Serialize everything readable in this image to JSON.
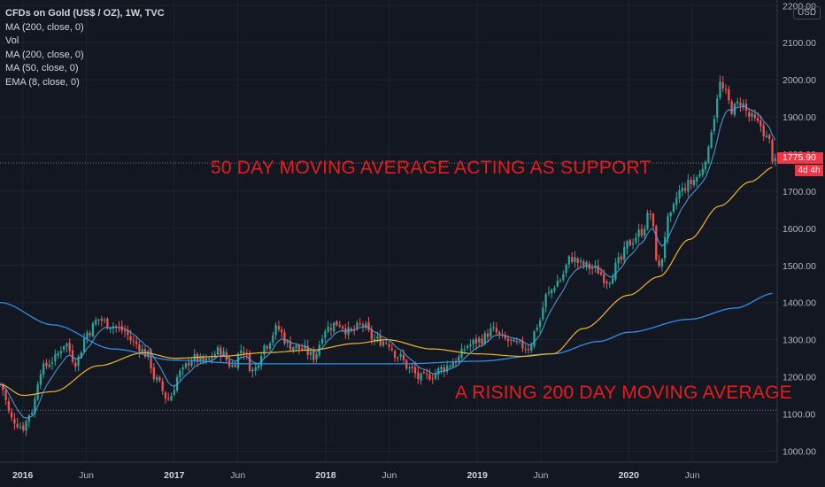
{
  "chart_data": {
    "type": "candlestick",
    "symbol_line": "CFDs on Gold (US$ / OZ), 1W, TVC",
    "indicators": [
      "MA (200, close, 0)",
      "Vol",
      "MA (200, close, 0)",
      "MA (50, close, 0)",
      "EMA (8, close, 0)"
    ],
    "currency": "USD",
    "last_price": "1775.90",
    "countdown": "4d 4h",
    "annotations": [
      "50 DAY MOVING AVERAGE ACTING AS SUPPORT",
      "A RISING 200 DAY MOVING AVERAGE"
    ],
    "y_ticks": [
      1000,
      1100,
      1200,
      1300,
      1400,
      1500,
      1600,
      1700,
      1800,
      1900,
      2000,
      2100,
      2200
    ],
    "y_tick_labels": [
      "1000.00",
      "1100.00",
      "1200.00",
      "1300.00",
      "1400.00",
      "1500.00",
      "1600.00",
      "1700.00",
      "1800.00",
      "1900.00",
      "2000.00",
      "2100.00",
      "2200.00"
    ],
    "ylim": [
      970,
      2215
    ],
    "x_range": [
      2015.85,
      2020.98
    ],
    "x_ticks": [
      {
        "label": "2016",
        "t": 2016.0,
        "year": true
      },
      {
        "label": "Jun",
        "t": 2016.42,
        "year": false
      },
      {
        "label": "2017",
        "t": 2017.0,
        "year": true
      },
      {
        "label": "Jun",
        "t": 2017.42,
        "year": false
      },
      {
        "label": "2018",
        "t": 2018.0,
        "year": true
      },
      {
        "label": "Jun",
        "t": 2018.42,
        "year": false
      },
      {
        "label": "2019",
        "t": 2019.0,
        "year": true
      },
      {
        "label": "Jun",
        "t": 2019.42,
        "year": false
      },
      {
        "label": "2020",
        "t": 2020.0,
        "year": true
      },
      {
        "label": "Jun",
        "t": 2020.42,
        "year": false
      }
    ],
    "close_anchors": [
      [
        2015.85,
        1180
      ],
      [
        2015.93,
        1085
      ],
      [
        2016.0,
        1065
      ],
      [
        2016.06,
        1110
      ],
      [
        2016.12,
        1220
      ],
      [
        2016.2,
        1245
      ],
      [
        2016.28,
        1290
      ],
      [
        2016.35,
        1240
      ],
      [
        2016.43,
        1320
      ],
      [
        2016.5,
        1355
      ],
      [
        2016.58,
        1340
      ],
      [
        2016.66,
        1325
      ],
      [
        2016.74,
        1290
      ],
      [
        2016.82,
        1260
      ],
      [
        2016.88,
        1190
      ],
      [
        2016.96,
        1140
      ],
      [
        2017.04,
        1210
      ],
      [
        2017.12,
        1250
      ],
      [
        2017.2,
        1240
      ],
      [
        2017.3,
        1270
      ],
      [
        2017.38,
        1230
      ],
      [
        2017.45,
        1275
      ],
      [
        2017.52,
        1215
      ],
      [
        2017.6,
        1285
      ],
      [
        2017.68,
        1330
      ],
      [
        2017.76,
        1285
      ],
      [
        2017.84,
        1275
      ],
      [
        2017.92,
        1255
      ],
      [
        2018.0,
        1330
      ],
      [
        2018.08,
        1345
      ],
      [
        2018.16,
        1320
      ],
      [
        2018.24,
        1340
      ],
      [
        2018.32,
        1300
      ],
      [
        2018.4,
        1295
      ],
      [
        2018.48,
        1255
      ],
      [
        2018.56,
        1220
      ],
      [
        2018.62,
        1195
      ],
      [
        2018.7,
        1205
      ],
      [
        2018.78,
        1225
      ],
      [
        2018.86,
        1245
      ],
      [
        2018.94,
        1285
      ],
      [
        2019.02,
        1300
      ],
      [
        2019.1,
        1325
      ],
      [
        2019.18,
        1300
      ],
      [
        2019.26,
        1285
      ],
      [
        2019.34,
        1280
      ],
      [
        2019.4,
        1340
      ],
      [
        2019.46,
        1420
      ],
      [
        2019.54,
        1460
      ],
      [
        2019.62,
        1520
      ],
      [
        2019.7,
        1500
      ],
      [
        2019.78,
        1490
      ],
      [
        2019.86,
        1460
      ],
      [
        2019.94,
        1510
      ],
      [
        2020.0,
        1560
      ],
      [
        2020.08,
        1590
      ],
      [
        2020.14,
        1640
      ],
      [
        2020.2,
        1490
      ],
      [
        2020.26,
        1620
      ],
      [
        2020.34,
        1700
      ],
      [
        2020.4,
        1720
      ],
      [
        2020.46,
        1740
      ],
      [
        2020.52,
        1800
      ],
      [
        2020.56,
        1900
      ],
      [
        2020.6,
        1990
      ],
      [
        2020.64,
        1960
      ],
      [
        2020.68,
        1920
      ],
      [
        2020.74,
        1940
      ],
      [
        2020.8,
        1900
      ],
      [
        2020.86,
        1880
      ],
      [
        2020.92,
        1840
      ],
      [
        2020.96,
        1776
      ]
    ],
    "ma200_points": [
      [
        2015.85,
        1400
      ],
      [
        2016.2,
        1340
      ],
      [
        2016.6,
        1275
      ],
      [
        2017.0,
        1245
      ],
      [
        2017.5,
        1235
      ],
      [
        2018.0,
        1235
      ],
      [
        2018.5,
        1235
      ],
      [
        2019.0,
        1242
      ],
      [
        2019.5,
        1262
      ],
      [
        2019.8,
        1295
      ],
      [
        2020.0,
        1320
      ],
      [
        2020.4,
        1355
      ],
      [
        2020.7,
        1385
      ],
      [
        2020.96,
        1425
      ]
    ],
    "ma50_points": [
      [
        2015.85,
        1180
      ],
      [
        2016.0,
        1150
      ],
      [
        2016.2,
        1160
      ],
      [
        2016.5,
        1230
      ],
      [
        2016.8,
        1265
      ],
      [
        2017.0,
        1250
      ],
      [
        2017.3,
        1255
      ],
      [
        2017.6,
        1265
      ],
      [
        2017.9,
        1272
      ],
      [
        2018.2,
        1290
      ],
      [
        2018.4,
        1300
      ],
      [
        2018.7,
        1275
      ],
      [
        2019.0,
        1262
      ],
      [
        2019.3,
        1255
      ],
      [
        2019.5,
        1262
      ],
      [
        2019.7,
        1330
      ],
      [
        2020.0,
        1420
      ],
      [
        2020.2,
        1470
      ],
      [
        2020.4,
        1570
      ],
      [
        2020.6,
        1660
      ],
      [
        2020.8,
        1725
      ],
      [
        2020.96,
        1765
      ]
    ],
    "ema8_lag": 0.9,
    "ref_lines": [
      1775.9,
      1110
    ]
  }
}
